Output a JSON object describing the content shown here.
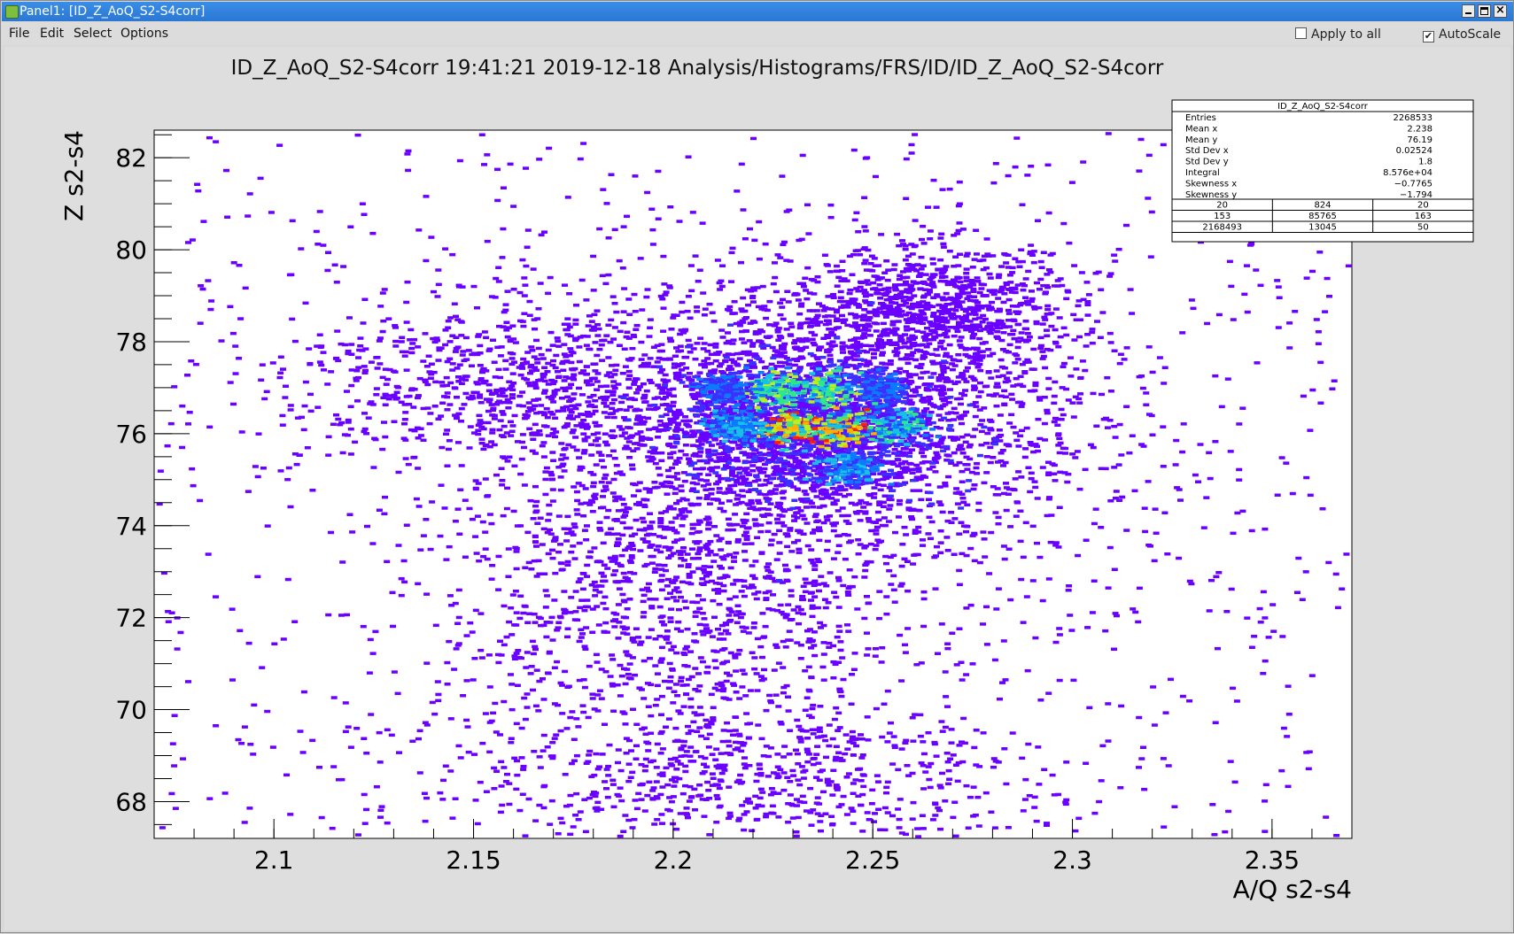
{
  "window": {
    "title": "Panel1: [ID_Z_AoQ_S2-S4corr]",
    "min_icon": "minimize-icon",
    "max_icon": "maximize-icon",
    "close_icon": "close-icon"
  },
  "menu": {
    "file": "File",
    "edit": "Edit",
    "select": "Select",
    "options": "Options"
  },
  "toolbar": {
    "apply_to_all": "Apply to all",
    "apply_to_all_checked": false,
    "autoscale": "AutoScale",
    "autoscale_checked": true,
    "check_mark": "✔"
  },
  "plot": {
    "header": "ID_Z_AoQ_S2-S4corr  19:41:21  2019-12-18  Analysis/Histograms/FRS/ID/ID_Z_AoQ_S2-S4corr"
  },
  "stats": {
    "title": "ID_Z_AoQ_S2-S4corr",
    "rows": [
      {
        "label": "Entries",
        "value": "2268533"
      },
      {
        "label": "Mean x",
        "value": "2.238"
      },
      {
        "label": "Mean y",
        "value": "76.19"
      },
      {
        "label": "Std Dev x",
        "value": "0.02524"
      },
      {
        "label": "Std Dev y",
        "value": "1.8"
      },
      {
        "label": "Integral",
        "value": "8.576e+04"
      },
      {
        "label": "Skewness x",
        "value": "−0.7765"
      },
      {
        "label": "Skewness y",
        "value": "−1.794"
      }
    ],
    "grid": [
      [
        "20",
        "824",
        "20"
      ],
      [
        "153",
        "85765",
        "163"
      ],
      [
        "2168493",
        "13045",
        "50"
      ]
    ]
  },
  "chart_data": {
    "type": "heatmap",
    "xlabel": "A/Q s2-s4",
    "ylabel": "Z s2-s4",
    "xlim": [
      2.07,
      2.37
    ],
    "ylim": [
      67.2,
      82.6
    ],
    "x_ticks": [
      "2.1",
      "2.15",
      "2.2",
      "2.25",
      "2.3",
      "2.35"
    ],
    "y_ticks": [
      "68",
      "70",
      "72",
      "74",
      "76",
      "78",
      "80",
      "82"
    ],
    "x_tick_values": [
      2.1,
      2.15,
      2.2,
      2.25,
      2.3,
      2.35
    ],
    "y_tick_values": [
      68,
      70,
      72,
      74,
      76,
      78,
      80,
      82
    ],
    "palette": [
      "#6a00ff",
      "#3a30ff",
      "#0a7bff",
      "#18c0e8",
      "#2ee88a",
      "#b8f020",
      "#ffb000",
      "#ff2000"
    ],
    "background_color": "#ffffff",
    "clusters": [
      {
        "x": 2.225,
        "y": 77.0,
        "level": 5
      },
      {
        "x": 2.238,
        "y": 77.0,
        "level": 5
      },
      {
        "x": 2.228,
        "y": 76.15,
        "level": 7
      },
      {
        "x": 2.241,
        "y": 76.15,
        "level": 7
      },
      {
        "x": 2.215,
        "y": 76.2,
        "level": 3
      },
      {
        "x": 2.255,
        "y": 76.2,
        "level": 4
      },
      {
        "x": 2.244,
        "y": 75.3,
        "level": 3
      },
      {
        "x": 2.212,
        "y": 77.0,
        "level": 2
      },
      {
        "x": 2.251,
        "y": 77.0,
        "level": 2
      }
    ]
  }
}
